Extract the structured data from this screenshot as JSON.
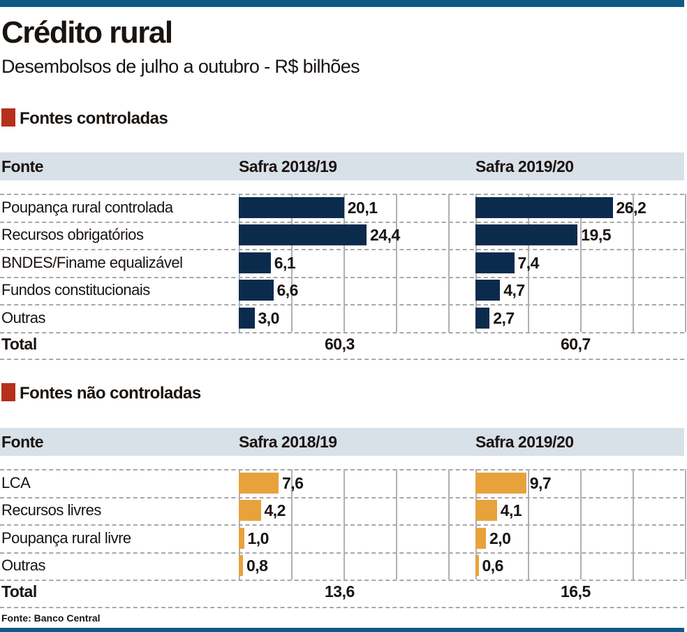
{
  "title": "Crédito rural",
  "subtitle": "Desembolsos de julho a outubro - R$ bilhões",
  "source": "Fonte: Banco Central",
  "colors": {
    "top_bar": "#0f5a86",
    "section_marker": "#b5311b",
    "controlled_bars": "#0b2b4c",
    "uncontrolled_bars": "#e8a23c",
    "header_band": "#d8e0e8"
  },
  "chart_data": [
    {
      "type": "bar",
      "orientation": "horizontal",
      "title": "Fontes controladas",
      "column_header": "Fonte",
      "categories": [
        "Poupança rural controlada",
        "Recursos obrigatórios",
        "BNDES/Finame equalizável",
        "Fundos constitucionais",
        "Outras"
      ],
      "series": [
        {
          "name": "Safra 2018/19",
          "values": [
            20.1,
            24.4,
            6.1,
            6.6,
            3.0
          ],
          "labels": [
            "20,1",
            "24,4",
            "6,1",
            "6,6",
            "3,0"
          ],
          "total": "60,3"
        },
        {
          "name": "Safra 2019/20",
          "values": [
            26.2,
            19.5,
            7.4,
            4.7,
            2.7
          ],
          "labels": [
            "26,2",
            "19,5",
            "7,4",
            "4,7",
            "2,7"
          ],
          "total": "60,7"
        }
      ],
      "total_label": "Total",
      "xlim": [
        0,
        40
      ],
      "grid_step": 10,
      "grid": true,
      "color": "#0b2b4c"
    },
    {
      "type": "bar",
      "orientation": "horizontal",
      "title": "Fontes não controladas",
      "column_header": "Fonte",
      "categories": [
        "LCA",
        "Recursos livres",
        "Poupança rural livre",
        "Outras"
      ],
      "series": [
        {
          "name": "Safra 2018/19",
          "values": [
            7.6,
            4.2,
            1.0,
            0.8
          ],
          "labels": [
            "7,6",
            "4,2",
            "1,0",
            "0,8"
          ],
          "total": "13,6"
        },
        {
          "name": "Safra 2019/20",
          "values": [
            9.7,
            4.1,
            2.0,
            0.6
          ],
          "labels": [
            "9,7",
            "4,1",
            "2,0",
            "0,6"
          ],
          "total": "16,5"
        }
      ],
      "total_label": "Total",
      "xlim": [
        0,
        40
      ],
      "grid_step": 10,
      "grid": true,
      "color": "#e8a23c"
    }
  ]
}
